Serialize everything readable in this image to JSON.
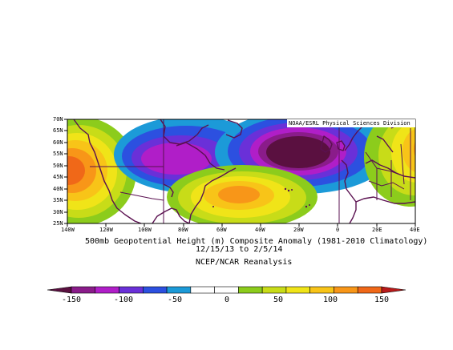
{
  "header": {
    "credit": "NOAA/ESRL Physical Sciences Division"
  },
  "caption": {
    "title": "500mb Geopotential Height (m) Composite Anomaly (1981-2010 Climatology)",
    "dates": "12/15/13  to 2/5/14",
    "source": "NCEP/NCAR Reanalysis"
  },
  "axes": {
    "lat_labels": [
      "70N",
      "65N",
      "60N",
      "55N",
      "50N",
      "45N",
      "40N",
      "35N",
      "30N",
      "25N"
    ],
    "lon_labels": [
      "140W",
      "120W",
      "100W",
      "80W",
      "60W",
      "40W",
      "20W",
      "0",
      "20E",
      "40E"
    ],
    "lat_range": [
      25,
      70
    ],
    "lon_range": [
      -140,
      40
    ]
  },
  "colorbar": {
    "labels": [
      "-150",
      "-100",
      "-50",
      "0",
      "50",
      "100",
      "150"
    ],
    "colors": [
      "#5a1040",
      "#8a1c8a",
      "#b01ec8",
      "#6a30d8",
      "#2c50e0",
      "#1c9ad8",
      "#ffffff",
      "#ffffff",
      "#8ccc1c",
      "#c8dc18",
      "#f0e418",
      "#f8c418",
      "#f89618",
      "#f06818",
      "#b81a1a"
    ]
  },
  "chart_data": {
    "type": "heatmap",
    "variable": "500mb Geopotential Height (m) Composite Anomaly",
    "x_range": [
      -140,
      40
    ],
    "y_range": [
      25,
      70
    ],
    "features": [
      {
        "sign": "negative",
        "center_lon": -20,
        "center_lat": 55,
        "min_value": -150
      },
      {
        "sign": "negative",
        "center_lon": -85,
        "center_lat": 52,
        "min_value": -110
      },
      {
        "sign": "positive",
        "center_lon": -50,
        "center_lat": 38,
        "max_value": 100
      },
      {
        "sign": "positive",
        "center_lon": -135,
        "center_lat": 48,
        "max_value": 130
      },
      {
        "sign": "positive",
        "center_lon": 35,
        "center_lat": 55,
        "max_value": 110
      }
    ]
  }
}
